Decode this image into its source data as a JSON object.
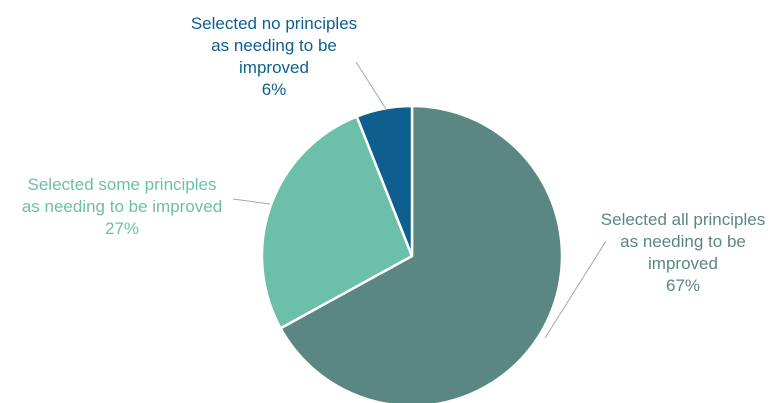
{
  "chart_data": {
    "type": "pie",
    "title": "",
    "slices": [
      {
        "name": "Selected all principles as needing to be improved",
        "label_lines": [
          "Selected all principles",
          "as needing to be",
          "improved"
        ],
        "percent_label": "67%",
        "value": 67,
        "color": "#5b8782"
      },
      {
        "name": "Selected some principles as needing to be improved",
        "label_lines": [
          "Selected some principles",
          "as needing to be improved"
        ],
        "percent_label": "27%",
        "value": 27,
        "color": "#6cbfa8"
      },
      {
        "name": "Selected no principles as needing to be improved",
        "label_lines": [
          "Selected no principles",
          "as needing to be",
          "improved"
        ],
        "percent_label": "6%",
        "value": 6,
        "color": "#0e5f8e"
      }
    ],
    "start_angle": "top",
    "direction": "clockwise",
    "legend": "none"
  }
}
